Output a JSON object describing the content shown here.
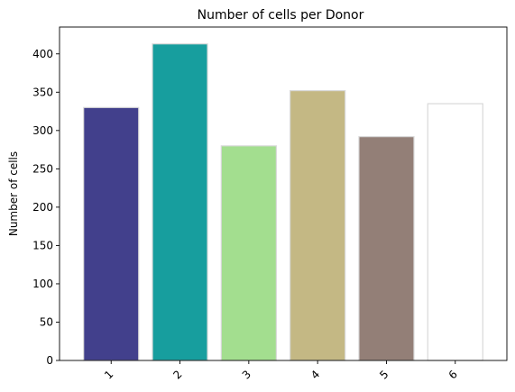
{
  "chart_data": {
    "type": "bar",
    "title": "Number of cells per Donor",
    "xlabel": "",
    "ylabel": "Number of cells",
    "categories": [
      "1",
      "2",
      "3",
      "4",
      "5",
      "6"
    ],
    "values": [
      330,
      413,
      280,
      352,
      292,
      335
    ],
    "colors": [
      "#42408c",
      "#179e9e",
      "#a3de8f",
      "#c4b884",
      "#937f77",
      "#ffffff"
    ],
    "edge_color": "#d9d9d9",
    "ylim": [
      0,
      435
    ],
    "yticks": [
      0,
      50,
      100,
      150,
      200,
      250,
      300,
      350,
      400
    ],
    "xtick_rotation": 45,
    "grid": false,
    "legend": "none"
  }
}
